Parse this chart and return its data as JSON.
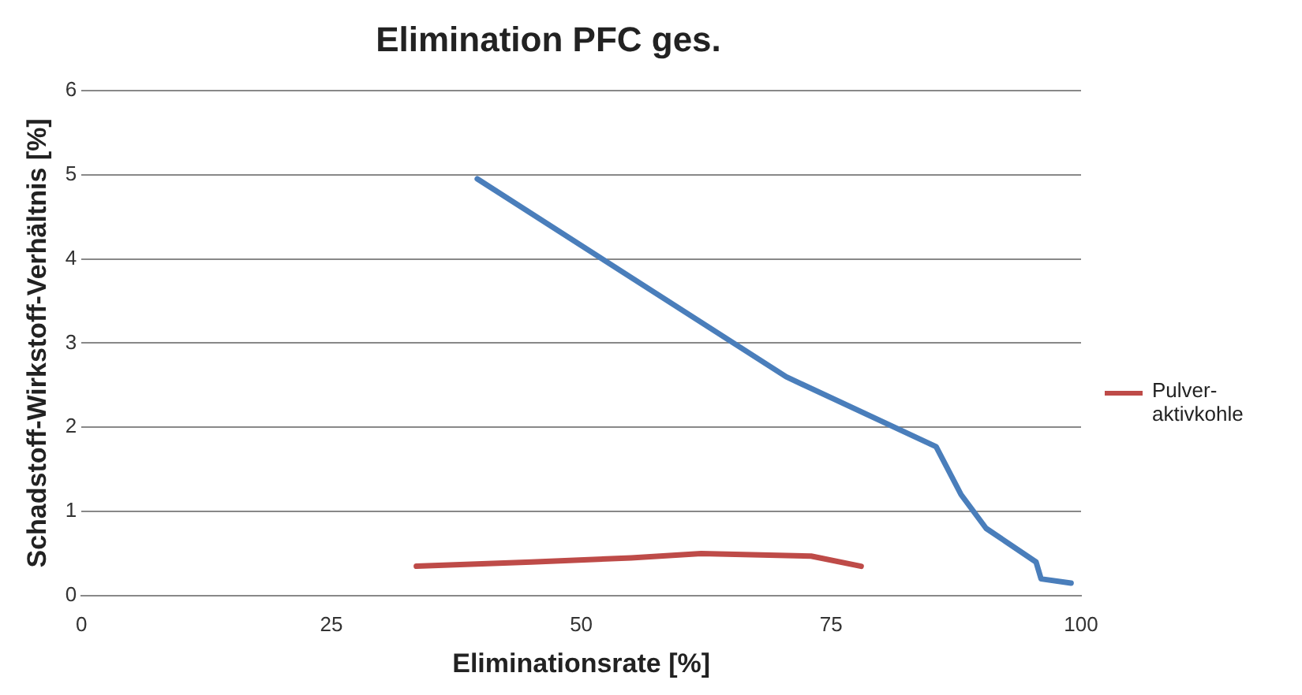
{
  "chart_data": {
    "type": "line",
    "title": "Elimination PFC ges.",
    "xlabel": "Eliminationsrate [%]",
    "ylabel": "Schadstoff-Wirkstoff-Verhältnis [%]",
    "xlim": [
      0,
      100
    ],
    "xticks": [
      0,
      25,
      50,
      75,
      100
    ],
    "ylim": [
      0,
      6
    ],
    "yticks": [
      0,
      1,
      2,
      3,
      4,
      5,
      6
    ],
    "grid": "y",
    "legend": "right",
    "marker": "none",
    "line_style": "solid",
    "series": [
      {
        "color": "#4a7ebb",
        "x": [
          39.6,
          70.5,
          85.5,
          88,
          90.5,
          95.5,
          96,
          99
        ],
        "values": [
          4.95,
          2.6,
          1.77,
          1.2,
          0.8,
          0.4,
          0.2,
          0.15
        ]
      },
      {
        "name": "Pulver-aktivkohle",
        "color": "#be4b48",
        "x": [
          33.5,
          45,
          55,
          62,
          73,
          78
        ],
        "values": [
          0.35,
          0.4,
          0.45,
          0.5,
          0.47,
          0.35
        ]
      }
    ]
  }
}
